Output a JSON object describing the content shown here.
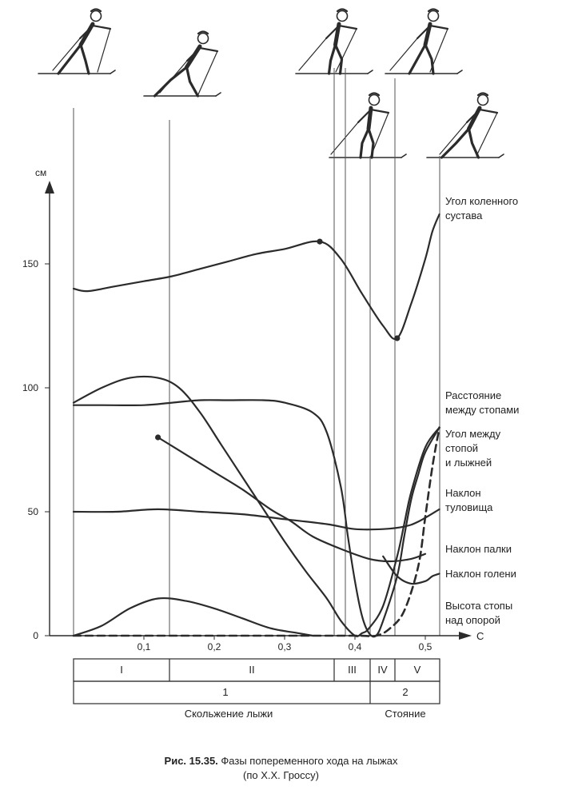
{
  "chart_data": {
    "type": "line",
    "unit_label": "см",
    "x_axis_label": "С",
    "y_ticks": [
      "0",
      "50",
      "100",
      "150"
    ],
    "x_ticks": [
      "0,1",
      "0,2",
      "0,3",
      "0,4",
      "0,5"
    ],
    "ylim": [
      0,
      175
    ],
    "xlim": [
      0,
      0.55
    ],
    "series": [
      {
        "name": "Угол коленного сустава",
        "style": "solid",
        "points": [
          [
            0,
            140
          ],
          [
            0.02,
            139
          ],
          [
            0.06,
            141
          ],
          [
            0.1,
            143
          ],
          [
            0.14,
            145
          ],
          [
            0.18,
            148
          ],
          [
            0.22,
            151
          ],
          [
            0.26,
            154
          ],
          [
            0.3,
            156
          ],
          [
            0.35,
            159
          ],
          [
            0.38,
            152
          ],
          [
            0.41,
            138
          ],
          [
            0.44,
            125
          ],
          [
            0.46,
            120
          ],
          [
            0.48,
            134
          ],
          [
            0.5,
            152
          ],
          [
            0.51,
            163
          ],
          [
            0.52,
            170
          ]
        ]
      },
      {
        "name": "Расстояние между стопами",
        "style": "solid",
        "points": [
          [
            0,
            93
          ],
          [
            0.04,
            93
          ],
          [
            0.1,
            93
          ],
          [
            0.14,
            94
          ],
          [
            0.18,
            95
          ],
          [
            0.22,
            95
          ],
          [
            0.27,
            95
          ],
          [
            0.3,
            94
          ],
          [
            0.34,
            90
          ],
          [
            0.36,
            82
          ],
          [
            0.38,
            60
          ],
          [
            0.39,
            40
          ],
          [
            0.4,
            22
          ],
          [
            0.41,
            8
          ],
          [
            0.42,
            1
          ],
          [
            0.43,
            0
          ],
          [
            0.44,
            6
          ],
          [
            0.46,
            24
          ],
          [
            0.47,
            40
          ],
          [
            0.48,
            55
          ],
          [
            0.49,
            65
          ],
          [
            0.5,
            74
          ],
          [
            0.52,
            84
          ]
        ]
      },
      {
        "name": "Угол между стопой и лыжней",
        "style": "solid",
        "points": [
          [
            0,
            94
          ],
          [
            0.04,
            100
          ],
          [
            0.08,
            104
          ],
          [
            0.12,
            104
          ],
          [
            0.15,
            100
          ],
          [
            0.18,
            90
          ],
          [
            0.21,
            77
          ],
          [
            0.24,
            64
          ],
          [
            0.27,
            51
          ],
          [
            0.3,
            38
          ],
          [
            0.33,
            26
          ],
          [
            0.36,
            15
          ],
          [
            0.38,
            6
          ],
          [
            0.4,
            0
          ],
          [
            0.41,
            1
          ],
          [
            0.42,
            3
          ],
          [
            0.44,
            12
          ],
          [
            0.46,
            32
          ],
          [
            0.47,
            45
          ],
          [
            0.48,
            58
          ],
          [
            0.5,
            76
          ],
          [
            0.52,
            84
          ]
        ]
      },
      {
        "name": "Наклон туловища",
        "style": "solid",
        "points": [
          [
            0,
            50
          ],
          [
            0.06,
            50
          ],
          [
            0.12,
            51
          ],
          [
            0.18,
            50
          ],
          [
            0.24,
            49
          ],
          [
            0.3,
            47
          ],
          [
            0.36,
            45
          ],
          [
            0.4,
            43
          ],
          [
            0.44,
            43
          ],
          [
            0.47,
            44
          ],
          [
            0.49,
            46
          ],
          [
            0.52,
            51
          ]
        ]
      },
      {
        "name": "Наклон палки",
        "style": "solid",
        "points": [
          [
            0.12,
            80
          ],
          [
            0.16,
            73
          ],
          [
            0.2,
            66
          ],
          [
            0.24,
            59
          ],
          [
            0.28,
            51
          ],
          [
            0.31,
            46
          ],
          [
            0.34,
            40
          ],
          [
            0.38,
            35
          ],
          [
            0.42,
            31
          ],
          [
            0.45,
            30
          ],
          [
            0.48,
            31
          ],
          [
            0.5,
            33
          ]
        ]
      },
      {
        "name": "Наклон голени",
        "style": "solid",
        "points": [
          [
            0.44,
            32
          ],
          [
            0.46,
            24
          ],
          [
            0.48,
            21
          ],
          [
            0.5,
            22
          ],
          [
            0.51,
            24
          ],
          [
            0.52,
            25
          ]
        ]
      },
      {
        "name": "Высота стопы над опорой",
        "style": "solid",
        "points": [
          [
            0,
            0
          ],
          [
            0.04,
            4
          ],
          [
            0.08,
            11
          ],
          [
            0.12,
            15
          ],
          [
            0.16,
            14
          ],
          [
            0.2,
            11
          ],
          [
            0.24,
            7
          ],
          [
            0.28,
            3
          ],
          [
            0.32,
            1
          ],
          [
            0.34,
            0
          ]
        ]
      },
      {
        "name": "",
        "style": "dashed",
        "points": [
          [
            0,
            0
          ],
          [
            0.1,
            0
          ],
          [
            0.2,
            0
          ],
          [
            0.3,
            0
          ],
          [
            0.4,
            0
          ],
          [
            0.43,
            0
          ],
          [
            0.45,
            3
          ],
          [
            0.47,
            10
          ],
          [
            0.49,
            28
          ],
          [
            0.5,
            48
          ],
          [
            0.51,
            68
          ],
          [
            0.52,
            84
          ]
        ]
      }
    ],
    "markers": [
      [
        0.35,
        159
      ],
      [
        0.46,
        120
      ],
      [
        0.12,
        80
      ]
    ],
    "phases": {
      "fine": [
        "I",
        "II",
        "III",
        "IV",
        "V"
      ],
      "coarse": [
        "1",
        "2"
      ],
      "labels": [
        "Скольжение лыжи",
        "Стояние"
      ]
    }
  },
  "series_labels": [
    [
      "Угол коленного",
      "сустава"
    ],
    [
      "Расстояние",
      "между стопами"
    ],
    [
      "Угол между",
      "стопой",
      "и лыжней"
    ],
    [
      "Наклон",
      "туловища"
    ],
    [
      "Наклон палки"
    ],
    [
      "Наклон голени"
    ],
    [
      "Высота стопы",
      "над опорой"
    ]
  ],
  "caption": {
    "number": "Рис. 15.35.",
    "title": "Фазы попеременного хода на лыжах",
    "source": "(по Х.Х. Гроссу)"
  }
}
